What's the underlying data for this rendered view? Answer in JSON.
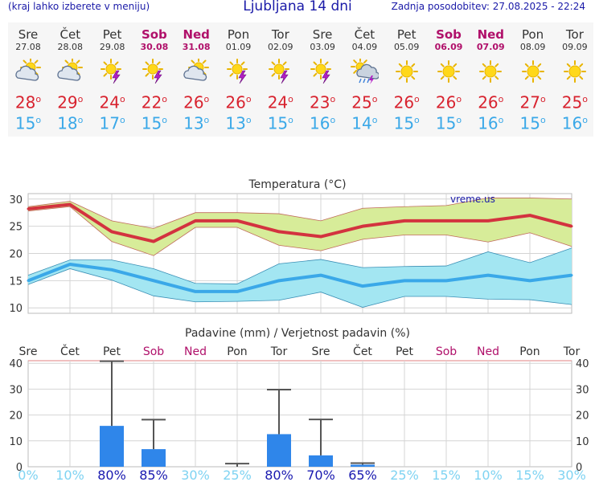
{
  "header": {
    "left_note": "(kraj lahko izberete v meniju)",
    "title": "Ljubljana 14 dni",
    "updated": "Zadnja posodobitev: 27.08.2025 - 22:24"
  },
  "days": [
    {
      "name": "Sre",
      "date": "27.08",
      "weekend": false,
      "icon": "cloudy-sun-icon",
      "tmax": "28",
      "tmin": "15"
    },
    {
      "name": "Čet",
      "date": "28.08",
      "weekend": false,
      "icon": "cloudy-sun-icon",
      "tmax": "29",
      "tmin": "18"
    },
    {
      "name": "Pet",
      "date": "29.08",
      "weekend": false,
      "icon": "sun-storm-icon",
      "tmax": "24",
      "tmin": "17"
    },
    {
      "name": "Sob",
      "date": "30.08",
      "weekend": true,
      "icon": "sun-storm-icon",
      "tmax": "22",
      "tmin": "15"
    },
    {
      "name": "Ned",
      "date": "31.08",
      "weekend": true,
      "icon": "cloudy-sun-icon",
      "tmax": "26",
      "tmin": "13"
    },
    {
      "name": "Pon",
      "date": "01.09",
      "weekend": false,
      "icon": "sun-storm-icon",
      "tmax": "26",
      "tmin": "13"
    },
    {
      "name": "Tor",
      "date": "02.09",
      "weekend": false,
      "icon": "sun-storm-icon",
      "tmax": "24",
      "tmin": "15"
    },
    {
      "name": "Sre",
      "date": "03.09",
      "weekend": false,
      "icon": "sun-storm-icon",
      "tmax": "23",
      "tmin": "16"
    },
    {
      "name": "Čet",
      "date": "04.09",
      "weekend": false,
      "icon": "sun-rain-storm-icon",
      "tmax": "25",
      "tmin": "14"
    },
    {
      "name": "Pet",
      "date": "05.09",
      "weekend": false,
      "icon": "sun-icon",
      "tmax": "26",
      "tmin": "15"
    },
    {
      "name": "Sob",
      "date": "06.09",
      "weekend": true,
      "icon": "sun-icon",
      "tmax": "26",
      "tmin": "15"
    },
    {
      "name": "Ned",
      "date": "07.09",
      "weekend": true,
      "icon": "sun-icon",
      "tmax": "26",
      "tmin": "16"
    },
    {
      "name": "Pon",
      "date": "08.09",
      "weekend": false,
      "icon": "sun-icon",
      "tmax": "27",
      "tmin": "15"
    },
    {
      "name": "Tor",
      "date": "09.09",
      "weekend": false,
      "icon": "sun-icon",
      "tmax": "25",
      "tmin": "16"
    }
  ],
  "degree_mark": "o",
  "colors": {
    "tmax": "#d8232f",
    "tmin": "#3aa8e8",
    "weekend": "#b0106a",
    "precip_bar": "#2f86ea",
    "prob_high": "#1a1ab0",
    "prob_low": "#7fd3f2"
  },
  "chart_data": [
    {
      "type": "line",
      "title": "Temperatura (°C)",
      "watermark": "vreme.us",
      "ylim": [
        9,
        31
      ],
      "yticks": [
        10,
        15,
        20,
        25,
        30
      ],
      "grid": true,
      "series": [
        {
          "values": [
            28.2,
            29.0,
            24.0,
            22.2,
            26.0,
            26.0,
            24.0,
            23.1,
            25.0,
            26.0,
            26.0,
            26.0,
            27.0,
            25.0
          ],
          "color": "#d3333f"
        },
        {
          "values": [
            15.0,
            18.0,
            17.0,
            15.0,
            13.0,
            13.0,
            15.0,
            16.0,
            14.0,
            15.0,
            15.0,
            16.0,
            15.0,
            16.0
          ],
          "color": "#3aa8e8"
        }
      ],
      "bands": [
        {
          "upper": [
            28.6,
            29.6,
            26.0,
            24.6,
            27.5,
            27.5,
            27.3,
            26.0,
            28.3,
            28.6,
            28.8,
            30.2,
            30.2,
            30.0
          ],
          "lower": [
            27.8,
            28.6,
            22.2,
            19.6,
            24.8,
            24.8,
            21.5,
            20.5,
            22.6,
            23.4,
            23.4,
            22.1,
            23.8,
            21.3
          ],
          "fill": "#d7ec99",
          "stroke": "#c06a5a"
        },
        {
          "upper": [
            16.0,
            18.8,
            18.8,
            17.2,
            14.5,
            14.4,
            18.1,
            18.9,
            17.4,
            17.6,
            17.7,
            20.3,
            18.3,
            21.0
          ],
          "lower": [
            14.3,
            17.2,
            15.1,
            12.2,
            11.1,
            11.2,
            11.4,
            12.9,
            10.1,
            12.1,
            12.1,
            11.6,
            11.5,
            10.6
          ],
          "fill": "#a3e6f2",
          "stroke": "#3a8fb5"
        }
      ]
    },
    {
      "type": "bar",
      "title": "Padavine (mm) / Verjetnost padavin (%)",
      "ylim": [
        0,
        41
      ],
      "yticks": [
        0,
        10,
        20,
        30,
        40
      ],
      "grid": true,
      "categories": [
        "Sre",
        "Čet",
        "Pet",
        "Sob",
        "Ned",
        "Pon",
        "Tor",
        "Sre",
        "Čet",
        "Pet",
        "Sob",
        "Ned",
        "Pon",
        "Tor"
      ],
      "category_weekend": [
        false,
        false,
        false,
        true,
        true,
        false,
        false,
        false,
        false,
        false,
        true,
        true,
        false,
        false
      ],
      "values": [
        0,
        0,
        15.8,
        6.8,
        0,
        0,
        12.6,
        4.4,
        0.8,
        0,
        0,
        0,
        0,
        0
      ],
      "error_high": [
        null,
        null,
        40.8,
        18.2,
        null,
        1.2,
        29.8,
        18.3,
        1.4,
        null,
        null,
        null,
        null,
        null
      ],
      "probability": [
        "0%",
        "10%",
        "80%",
        "85%",
        "30%",
        "25%",
        "80%",
        "70%",
        "65%",
        "25%",
        "15%",
        "10%",
        "15%",
        "30%"
      ],
      "probability_values": [
        0,
        10,
        80,
        85,
        30,
        25,
        80,
        70,
        65,
        25,
        15,
        10,
        15,
        30
      ]
    }
  ]
}
